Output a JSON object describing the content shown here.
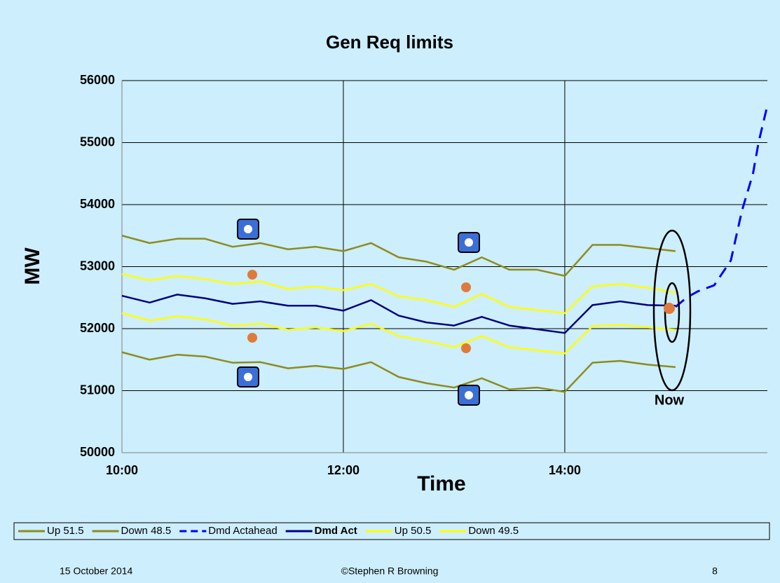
{
  "chart_data": {
    "type": "line",
    "title": "Gen Req limits",
    "x_label": "Time",
    "y_label": "MW",
    "annotation": "Now",
    "xlim": [
      10,
      15.83
    ],
    "xticks": [
      {
        "value": 10,
        "label": "10:00"
      },
      {
        "value": 12,
        "label": "12:00"
      },
      {
        "value": 14,
        "label": "14:00"
      }
    ],
    "ylim": [
      50000,
      56000
    ],
    "yticks": [
      50000,
      51000,
      52000,
      53000,
      54000,
      55000,
      56000
    ],
    "grid": true,
    "x": [
      10,
      10.25,
      10.5,
      10.75,
      11,
      11.25,
      11.5,
      11.75,
      12,
      12.25,
      12.5,
      12.75,
      13,
      13.25,
      13.5,
      13.75,
      14,
      14.25,
      14.5,
      14.75,
      15
    ],
    "series": [
      {
        "name": "Up 51.5",
        "color": "#8c8c1e",
        "values": [
          53500,
          53380,
          53450,
          53450,
          53320,
          53380,
          53280,
          53320,
          53250,
          53380,
          53150,
          53080,
          52950,
          53150,
          52950,
          52950,
          52850,
          53350,
          53350,
          53300,
          53250
        ]
      },
      {
        "name": "Down 48.5",
        "color": "#8c8c1e",
        "values": [
          51620,
          51500,
          51580,
          51550,
          51450,
          51460,
          51360,
          51400,
          51350,
          51460,
          51220,
          51120,
          51050,
          51200,
          51020,
          51050,
          50980,
          51450,
          51480,
          51420,
          51380
        ]
      },
      {
        "name": "Dmd Actahead",
        "color": "#0000ff",
        "line_style": "dashed",
        "x": [
          15,
          15.1,
          15.2,
          15.35,
          15.5,
          15.6,
          15.7,
          15.75,
          15.83
        ],
        "values": [
          52350,
          52500,
          52600,
          52700,
          53100,
          53900,
          54500,
          55000,
          55600
        ]
      },
      {
        "name": "Dmd Act",
        "color": "#000080",
        "bold": true,
        "values": [
          52530,
          52420,
          52550,
          52490,
          52400,
          52440,
          52370,
          52370,
          52290,
          52460,
          52210,
          52100,
          52050,
          52190,
          52050,
          51990,
          51930,
          52380,
          52440,
          52380,
          52370
        ]
      },
      {
        "name": "Up 50.5",
        "color": "#ffff00",
        "values": [
          52880,
          52780,
          52850,
          52800,
          52720,
          52760,
          52640,
          52680,
          52620,
          52720,
          52520,
          52460,
          52350,
          52560,
          52350,
          52300,
          52250,
          52680,
          52720,
          52660,
          52580
        ]
      },
      {
        "name": "Down 49.5",
        "color": "#ffff00",
        "values": [
          52250,
          52130,
          52200,
          52150,
          52050,
          52080,
          51980,
          52020,
          51960,
          52080,
          51880,
          51800,
          51700,
          51880,
          51700,
          51650,
          51600,
          52040,
          52060,
          52020,
          51980
        ]
      }
    ]
  },
  "footer": {
    "date": "15 October 2014",
    "credit": "©Stephen R Browning",
    "page": "8"
  }
}
